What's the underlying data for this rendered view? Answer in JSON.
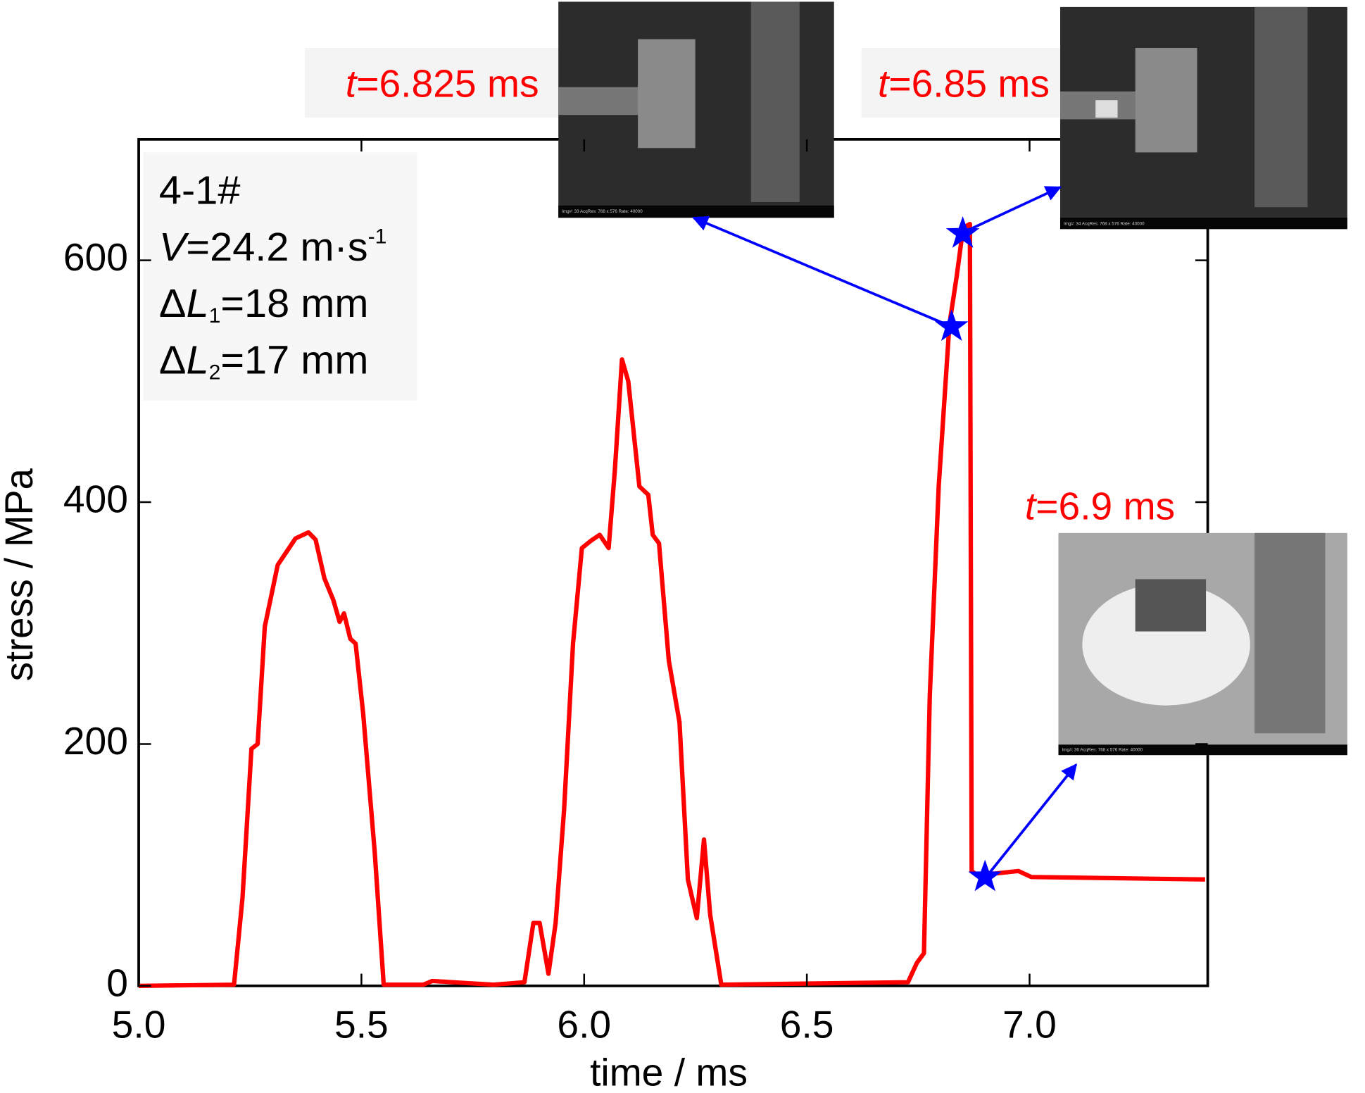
{
  "chart_data": {
    "type": "line",
    "color": "#ff0000",
    "xlabel": "time / ms",
    "ylabel": "stress / MPa",
    "xlim": [
      5.0,
      7.4
    ],
    "ylim": [
      0,
      700
    ],
    "xticks": [
      {
        "value": 5,
        "label": "5.0"
      },
      5.5,
      {
        "value": 6,
        "label": "6.0"
      },
      6.5,
      {
        "value": 7,
        "label": "7.0"
      }
    ],
    "yticks": [
      0,
      200,
      400,
      600
    ],
    "x": [
      5.0,
      5.214,
      5.233,
      5.253,
      5.267,
      5.283,
      5.312,
      5.352,
      5.381,
      5.397,
      5.417,
      5.437,
      5.451,
      5.461,
      5.475,
      5.487,
      5.504,
      5.53,
      5.55,
      5.639,
      5.659,
      5.797,
      5.866,
      5.886,
      5.9,
      5.92,
      5.936,
      5.955,
      5.975,
      5.995,
      6.015,
      6.035,
      6.055,
      6.069,
      6.085,
      6.099,
      6.124,
      6.144,
      6.154,
      6.168,
      6.19,
      6.214,
      6.233,
      6.253,
      6.269,
      6.283,
      6.308,
      6.727,
      6.747,
      6.763,
      6.776,
      6.796,
      6.82,
      6.836,
      6.851,
      6.866,
      6.87,
      6.881,
      6.925,
      6.975,
      7.004,
      7.394
    ],
    "values": [
      0,
      1,
      73,
      196,
      200,
      297,
      348,
      370,
      375,
      369,
      337,
      319,
      301,
      308,
      287,
      283,
      225,
      110,
      1,
      1,
      4,
      1,
      3,
      52,
      52,
      10,
      52,
      146,
      283,
      362,
      368,
      373,
      362,
      427,
      518,
      500,
      413,
      406,
      373,
      366,
      269,
      218,
      88,
      56,
      121,
      59,
      1,
      3,
      19,
      27,
      240,
      413,
      547,
      586,
      627,
      630,
      95,
      92,
      93,
      95,
      90,
      88
    ],
    "annotations": [
      [
        "4-1#"
      ],
      [
        "V",
        "=24.2 m·s",
        "-1"
      ],
      [
        "Δ",
        "L",
        "1",
        "=18 mm"
      ],
      [
        "Δ",
        "L",
        "2",
        "=17 mm"
      ]
    ],
    "highlights": {
      "color": "#0000ff",
      "x": [
        6.825,
        6.85,
        6.9
      ],
      "values": [
        545,
        622,
        90
      ],
      "labels": [
        [
          "t",
          "=6.825 ms"
        ],
        [
          "t",
          "=6.85 ms"
        ],
        [
          "t",
          "=6.9 ms"
        ]
      ],
      "captions": [
        "Img#:  33 AcqRes: 768 x 576 Rate: 40000",
        "Img#:  34 AcqRes: 768 x 576 Rate: 40000",
        "Img#:  36 AcqRes: 768 x 576 Rate: 40000"
      ]
    }
  }
}
